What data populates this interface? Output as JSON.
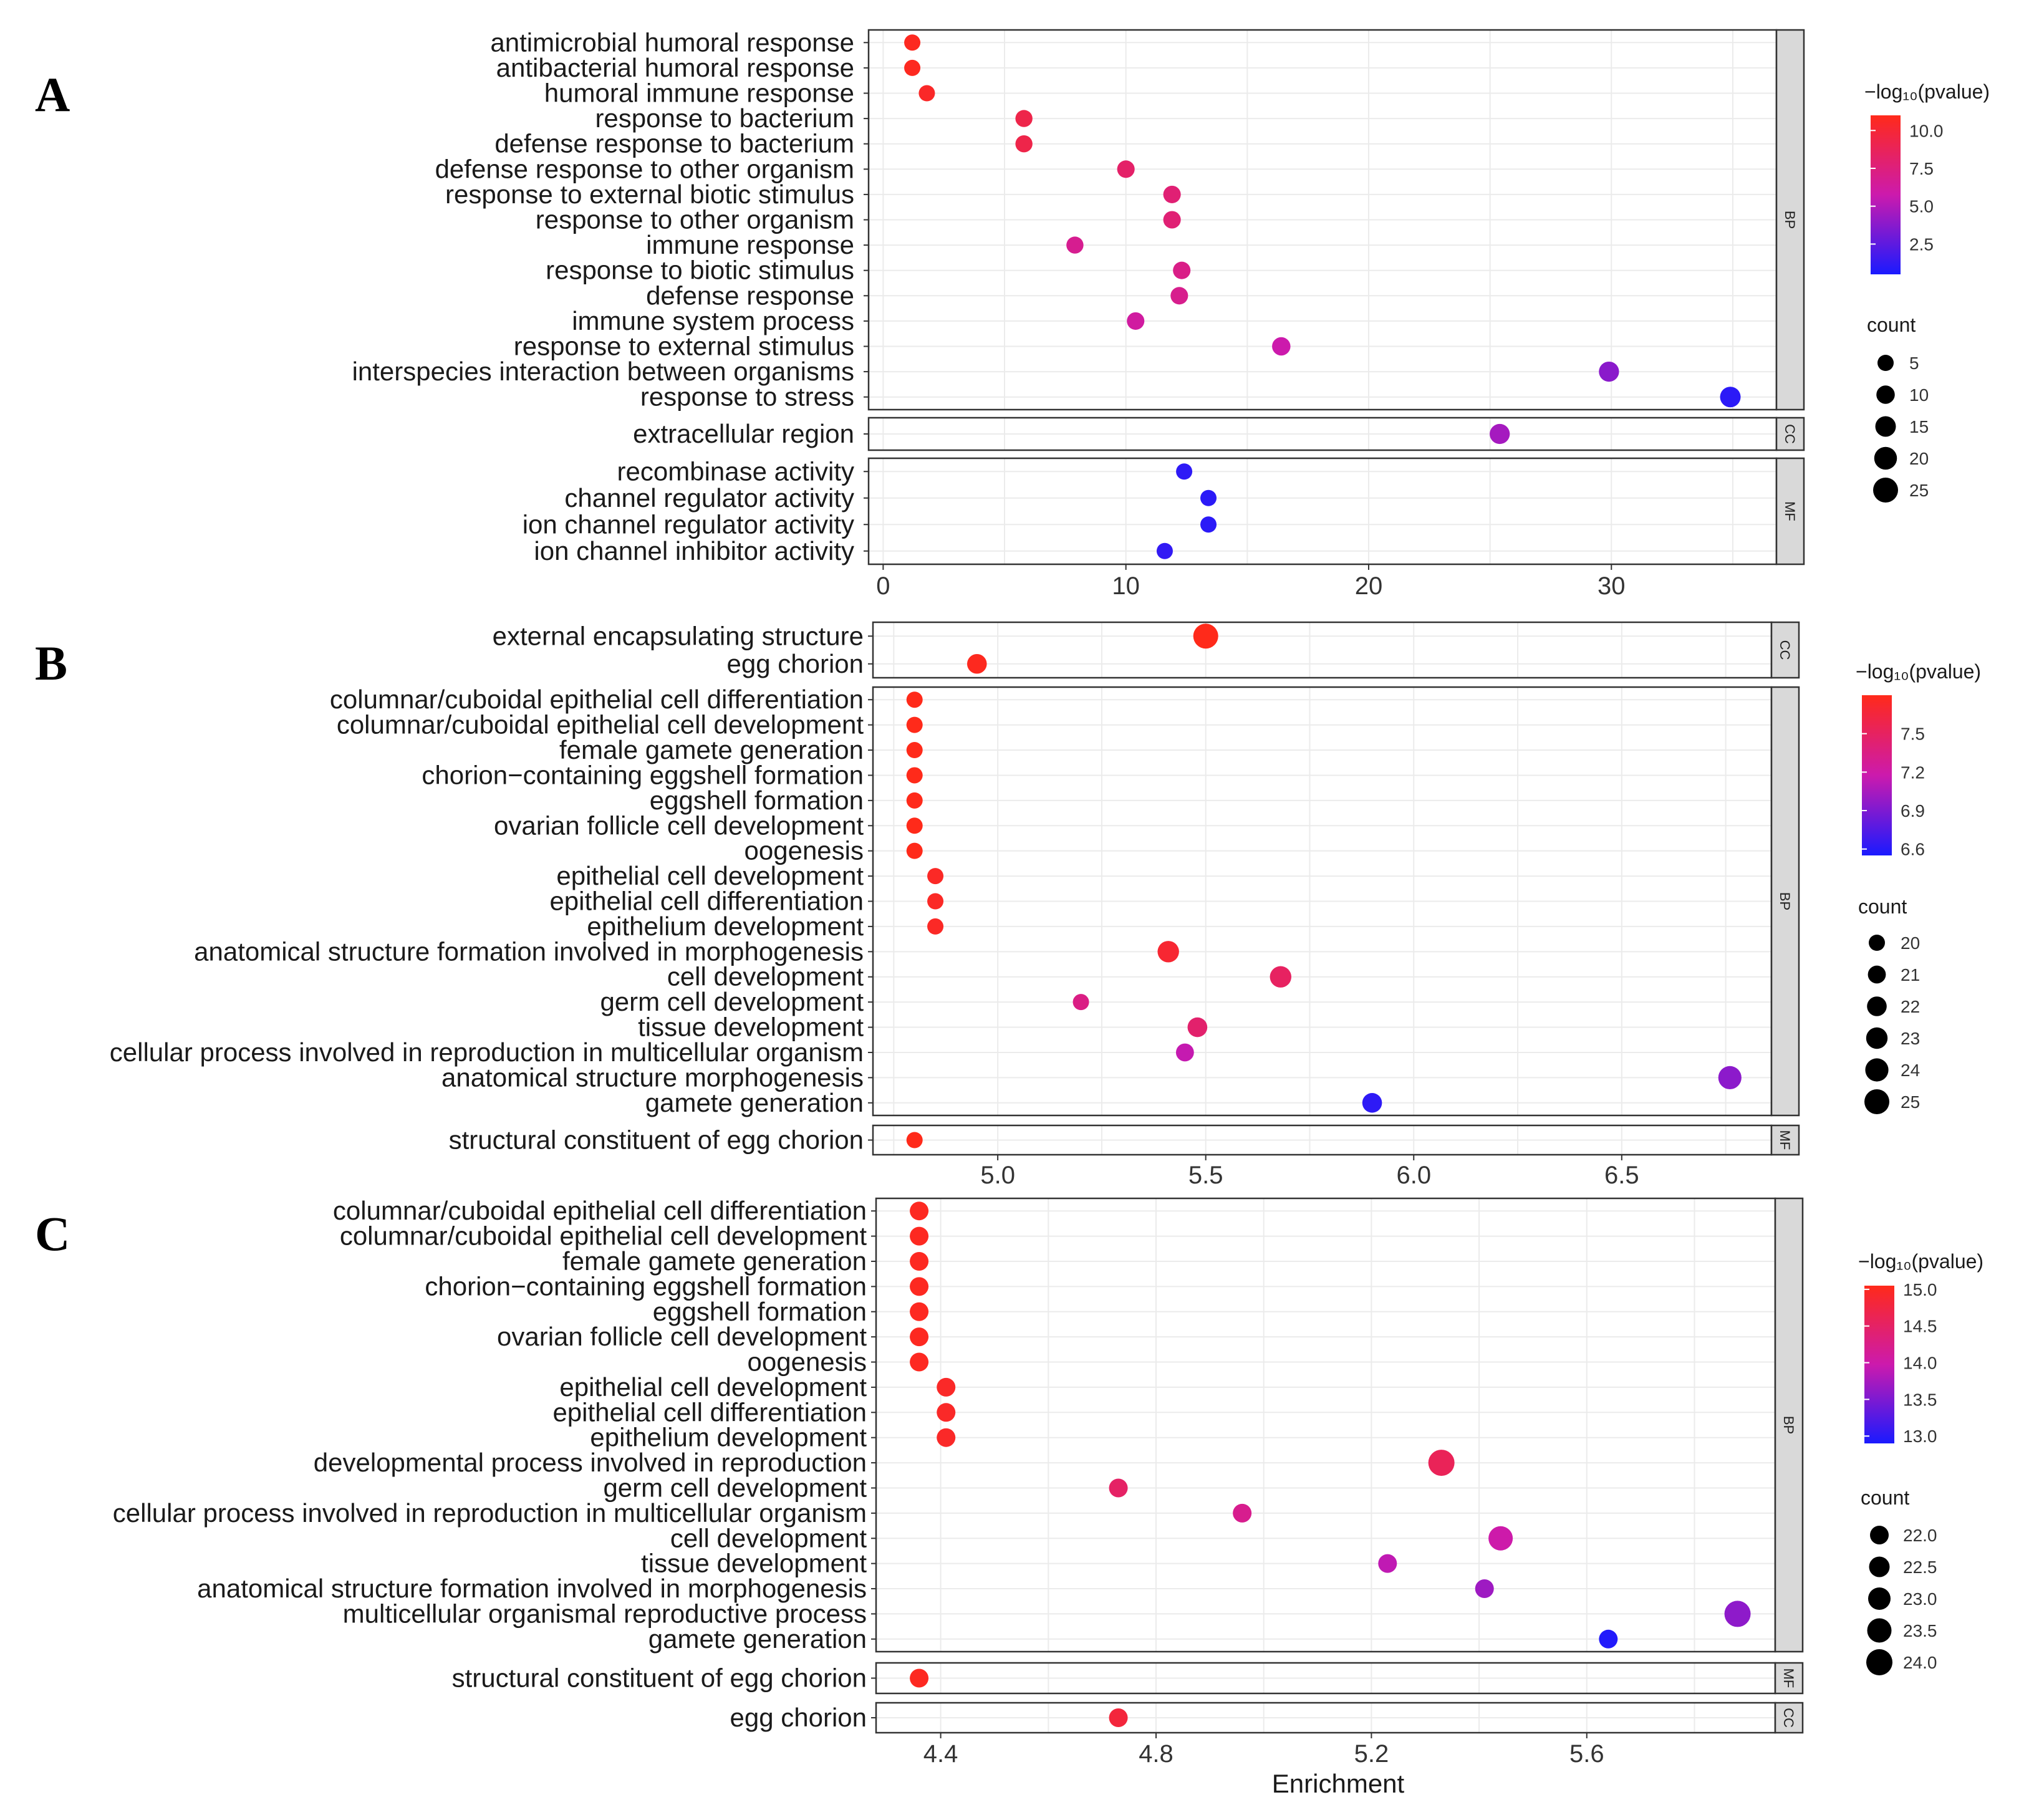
{
  "figure": {
    "x_axis_label": "Enrichment",
    "legend_count_title": "count",
    "legend_color_title": "−log₁₀(pvalue)"
  },
  "colors": {
    "low": "#1a1aff",
    "mid": "#cc1aad",
    "high": "#ff2a1a",
    "strip": "#d9d9d9",
    "grid": "#ebebeb"
  },
  "chart_data": [
    {
      "type": "scatter",
      "panel": "A",
      "x_ticks": [
        0,
        10,
        20,
        30
      ],
      "xlim": [
        -0.6,
        36.8
      ],
      "color_title": "−log₁₀(pvalue)",
      "color_ticks": [
        "10.0",
        "7.5",
        "5.0",
        "2.5"
      ],
      "color_tick_values": [
        10.0,
        7.5,
        5.0,
        2.5
      ],
      "color_range": [
        0.5,
        11.0
      ],
      "count_title": "count",
      "count_ticks": [
        "5",
        "10",
        "15",
        "20",
        "25"
      ],
      "count_tick_values": [
        5,
        10,
        15,
        20,
        25
      ],
      "facets": [
        {
          "name": "BP",
          "terms": [
            {
              "term": "antimicrobial humoral response",
              "x": 1.2,
              "count": 5,
              "logp": 10.8
            },
            {
              "term": "antibacterial humoral response",
              "x": 1.2,
              "count": 5,
              "logp": 10.8
            },
            {
              "term": "humoral immune response",
              "x": 1.8,
              "count": 5,
              "logp": 10.5
            },
            {
              "term": "response to bacterium",
              "x": 5.8,
              "count": 7,
              "logp": 9.3
            },
            {
              "term": "defense response to bacterium",
              "x": 5.8,
              "count": 7,
              "logp": 9.3
            },
            {
              "term": "defense response to other organism",
              "x": 10.0,
              "count": 8,
              "logp": 8.2
            },
            {
              "term": "response to external biotic stimulus",
              "x": 11.9,
              "count": 8,
              "logp": 7.8
            },
            {
              "term": "response to other organism",
              "x": 11.9,
              "count": 8,
              "logp": 7.8
            },
            {
              "term": "immune response",
              "x": 7.9,
              "count": 7,
              "logp": 6.8
            },
            {
              "term": "response to biotic stimulus",
              "x": 12.3,
              "count": 8,
              "logp": 7.1
            },
            {
              "term": "defense response",
              "x": 12.2,
              "count": 8,
              "logp": 6.9
            },
            {
              "term": "immune system process",
              "x": 10.4,
              "count": 8,
              "logp": 6.2
            },
            {
              "term": "response to external stimulus",
              "x": 16.4,
              "count": 10,
              "logp": 5.8
            },
            {
              "term": "interspecies interaction between organisms",
              "x": 29.9,
              "count": 14,
              "logp": 3.8
            },
            {
              "term": "response to stress",
              "x": 34.9,
              "count": 15,
              "logp": 1.0
            }
          ]
        },
        {
          "name": "CC",
          "terms": [
            {
              "term": "extracellular region",
              "x": 25.4,
              "count": 14,
              "logp": 4.6
            }
          ]
        },
        {
          "name": "MF",
          "terms": [
            {
              "term": "recombinase activity",
              "x": 12.4,
              "count": 4,
              "logp": 1.1
            },
            {
              "term": "channel regulator activity",
              "x": 13.4,
              "count": 4,
              "logp": 1.0
            },
            {
              "term": "ion channel regulator activity",
              "x": 13.4,
              "count": 4,
              "logp": 1.0
            },
            {
              "term": "ion channel inhibitor activity",
              "x": 11.6,
              "count": 4,
              "logp": 1.2
            }
          ]
        }
      ]
    },
    {
      "type": "scatter",
      "panel": "B",
      "x_ticks": [
        5.0,
        5.5,
        6.0,
        6.5
      ],
      "xlim": [
        4.7,
        6.86
      ],
      "color_title": "−log₁₀(pvalue)",
      "color_ticks": [
        "7.5",
        "7.2",
        "6.9",
        "6.6"
      ],
      "color_tick_values": [
        7.5,
        7.2,
        6.9,
        6.6
      ],
      "color_range": [
        6.55,
        7.8
      ],
      "count_title": "count",
      "count_ticks": [
        "20",
        "21",
        "22",
        "23",
        "24",
        "25"
      ],
      "count_tick_values": [
        20,
        21,
        22,
        23,
        24,
        25
      ],
      "facets": [
        {
          "name": "CC",
          "terms": [
            {
              "term": "external encapsulating structure",
              "x": 5.5,
              "count": 25,
              "logp": 7.8
            },
            {
              "term": "egg chorion",
              "x": 4.95,
              "count": 22,
              "logp": 7.78
            }
          ]
        },
        {
          "name": "BP",
          "terms": [
            {
              "term": "columnar/cuboidal epithelial cell differentiation",
              "x": 4.8,
              "count": 20,
              "logp": 7.8
            },
            {
              "term": "columnar/cuboidal epithelial cell development",
              "x": 4.8,
              "count": 20,
              "logp": 7.8
            },
            {
              "term": "female gamete generation",
              "x": 4.8,
              "count": 20,
              "logp": 7.8
            },
            {
              "term": "chorion−containing eggshell formation",
              "x": 4.8,
              "count": 20,
              "logp": 7.8
            },
            {
              "term": "eggshell formation",
              "x": 4.8,
              "count": 20,
              "logp": 7.8
            },
            {
              "term": "ovarian follicle cell development",
              "x": 4.8,
              "count": 20,
              "logp": 7.8
            },
            {
              "term": "oogenesis",
              "x": 4.8,
              "count": 20,
              "logp": 7.8
            },
            {
              "term": "epithelial cell development",
              "x": 4.85,
              "count": 20,
              "logp": 7.75
            },
            {
              "term": "epithelial cell differentiation",
              "x": 4.85,
              "count": 20,
              "logp": 7.75
            },
            {
              "term": "epithelium development",
              "x": 4.85,
              "count": 20,
              "logp": 7.75
            },
            {
              "term": "anatomical structure formation involved in morphogenesis",
              "x": 5.41,
              "count": 23,
              "logp": 7.7
            },
            {
              "term": "cell development",
              "x": 5.68,
              "count": 23,
              "logp": 7.5
            },
            {
              "term": "germ cell development",
              "x": 5.2,
              "count": 20,
              "logp": 7.35
            },
            {
              "term": "tissue development",
              "x": 5.48,
              "count": 22,
              "logp": 7.45
            },
            {
              "term": "cellular process involved in reproduction in multicellular organism",
              "x": 5.45,
              "count": 21,
              "logp": 7.15
            },
            {
              "term": "anatomical structure morphogenesis",
              "x": 6.76,
              "count": 24,
              "logp": 6.95
            },
            {
              "term": "gamete generation",
              "x": 5.9,
              "count": 22,
              "logp": 6.62
            }
          ]
        },
        {
          "name": "MF",
          "terms": [
            {
              "term": "structural constituent of egg chorion",
              "x": 4.8,
              "count": 20,
              "logp": 7.8
            }
          ]
        }
      ]
    },
    {
      "type": "scatter",
      "panel": "C",
      "x_ticks": [
        4.4,
        4.8,
        5.2,
        5.6
      ],
      "xlim": [
        4.28,
        5.95
      ],
      "x_label": "Enrichment",
      "color_title": "−log₁₀(pvalue)",
      "color_ticks": [
        "15.0",
        "14.5",
        "14.0",
        "13.5",
        "13.0"
      ],
      "color_tick_values": [
        15.0,
        14.5,
        14.0,
        13.5,
        13.0
      ],
      "color_range": [
        12.9,
        15.05
      ],
      "count_title": "count",
      "count_ticks": [
        "22.0",
        "22.5",
        "23.0",
        "23.5",
        "24.0"
      ],
      "count_tick_values": [
        22.0,
        22.5,
        23.0,
        23.5,
        24.0
      ],
      "facets": [
        {
          "name": "BP",
          "terms": [
            {
              "term": "columnar/cuboidal epithelial cell differentiation",
              "x": 4.36,
              "count": 22,
              "logp": 15.0
            },
            {
              "term": "columnar/cuboidal epithelial cell development",
              "x": 4.36,
              "count": 22,
              "logp": 15.0
            },
            {
              "term": "female gamete generation",
              "x": 4.36,
              "count": 22,
              "logp": 15.0
            },
            {
              "term": "chorion−containing eggshell formation",
              "x": 4.36,
              "count": 22,
              "logp": 15.0
            },
            {
              "term": "eggshell formation",
              "x": 4.36,
              "count": 22,
              "logp": 15.0
            },
            {
              "term": "ovarian follicle cell development",
              "x": 4.36,
              "count": 22,
              "logp": 15.0
            },
            {
              "term": "oogenesis",
              "x": 4.36,
              "count": 22,
              "logp": 15.0
            },
            {
              "term": "epithelial cell development",
              "x": 4.41,
              "count": 22,
              "logp": 14.95
            },
            {
              "term": "epithelial cell differentiation",
              "x": 4.41,
              "count": 22,
              "logp": 14.95
            },
            {
              "term": "epithelium development",
              "x": 4.41,
              "count": 22,
              "logp": 14.95
            },
            {
              "term": "developmental process involved in reproduction",
              "x": 5.33,
              "count": 24,
              "logp": 14.6
            },
            {
              "term": "germ cell development",
              "x": 4.73,
              "count": 22,
              "logp": 14.5
            },
            {
              "term": "cellular process involved in reproduction in multicellular organism",
              "x": 4.96,
              "count": 22,
              "logp": 14.2
            },
            {
              "term": "cell development",
              "x": 5.44,
              "count": 23.5,
              "logp": 14.0
            },
            {
              "term": "tissue development",
              "x": 5.23,
              "count": 22,
              "logp": 13.9
            },
            {
              "term": "anatomical structure formation involved in morphogenesis",
              "x": 5.41,
              "count": 22,
              "logp": 13.7
            },
            {
              "term": "multicellular organismal reproductive process",
              "x": 5.88,
              "count": 24,
              "logp": 13.6
            },
            {
              "term": "gamete generation",
              "x": 5.64,
              "count": 22,
              "logp": 12.95
            }
          ]
        },
        {
          "name": "MF",
          "terms": [
            {
              "term": "structural constituent of egg chorion",
              "x": 4.36,
              "count": 22,
              "logp": 15.0
            }
          ]
        },
        {
          "name": "CC",
          "terms": [
            {
              "term": "egg chorion",
              "x": 4.73,
              "count": 22,
              "logp": 14.8
            }
          ]
        }
      ]
    }
  ]
}
